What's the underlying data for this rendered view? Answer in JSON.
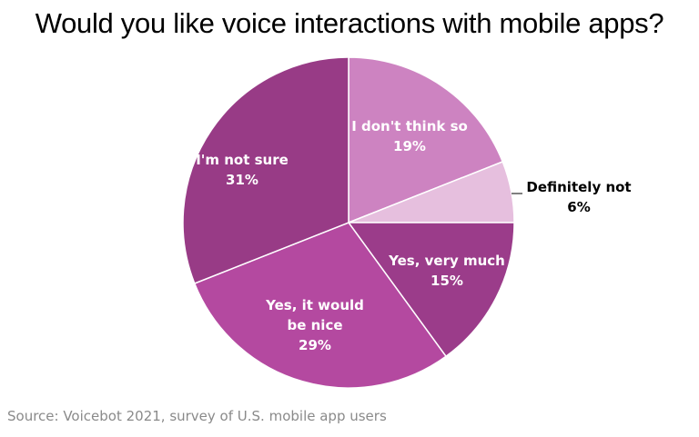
{
  "title": "Would you like voice interactions with mobile apps?",
  "source": "Source: Voicebot 2021, survey of U.S. mobile app users",
  "chart_data": {
    "type": "pie",
    "title": "Would you like voice interactions with mobile apps?",
    "start": "12 o'clock",
    "direction": "clockwise",
    "slices": [
      {
        "label_lines": [
          "I don't think so"
        ],
        "pct_label": "19%",
        "value": 19,
        "color": "#cd83c1",
        "text_color": "#ffffff"
      },
      {
        "label_lines": [
          "Definitely not"
        ],
        "pct_label": "6%",
        "value": 6,
        "color": "#e6bfde",
        "text_color": "#000000"
      },
      {
        "label_lines": [
          "Yes, very much"
        ],
        "pct_label": "15%",
        "value": 15,
        "color": "#9b3c8a",
        "text_color": "#ffffff"
      },
      {
        "label_lines": [
          "Yes, it would",
          "be nice"
        ],
        "pct_label": "29%",
        "value": 29,
        "color": "#b449a0",
        "text_color": "#ffffff"
      },
      {
        "label_lines": [
          "I'm not sure"
        ],
        "pct_label": "31%",
        "value": 31,
        "color": "#983b86",
        "text_color": "#ffffff"
      }
    ]
  }
}
